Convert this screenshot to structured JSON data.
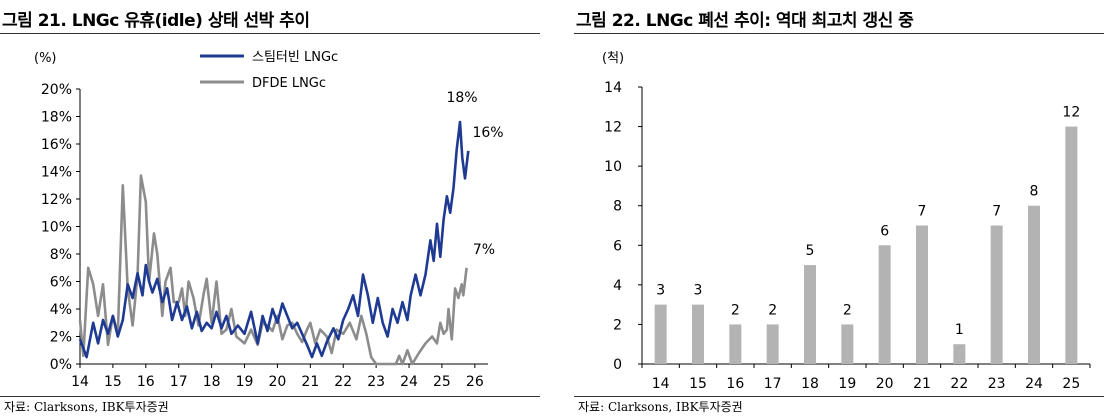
{
  "left": {
    "title": "그림 21. LNGc 유휴(idle) 상태 선박 추이",
    "source": "자료: Clarksons, IBK투자증권",
    "chart_data": {
      "type": "line",
      "unit_label": "(%)",
      "ylim": [
        0,
        20
      ],
      "y_ticks": [
        "0%",
        "2%",
        "4%",
        "6%",
        "8%",
        "10%",
        "12%",
        "14%",
        "16%",
        "18%",
        "20%"
      ],
      "x_ticks": [
        "14",
        "15",
        "16",
        "17",
        "18",
        "19",
        "20",
        "21",
        "22",
        "23",
        "24",
        "25",
        "26"
      ],
      "xlim": [
        2014,
        2026.4
      ],
      "grid": false,
      "legend": "top-center",
      "annotations": [
        "18%",
        "16%",
        "7%"
      ],
      "series": [
        {
          "name": "스팀터빈 LNGc",
          "color": "#1f3a93",
          "points": [
            [
              2014.0,
              1.8
            ],
            [
              2014.2,
              0.5
            ],
            [
              2014.4,
              3.0
            ],
            [
              2014.55,
              1.5
            ],
            [
              2014.7,
              3.2
            ],
            [
              2014.85,
              2.2
            ],
            [
              2015.0,
              3.5
            ],
            [
              2015.15,
              2.0
            ],
            [
              2015.3,
              3.2
            ],
            [
              2015.45,
              5.8
            ],
            [
              2015.6,
              4.8
            ],
            [
              2015.75,
              6.6
            ],
            [
              2015.9,
              5.0
            ],
            [
              2016.0,
              7.2
            ],
            [
              2016.1,
              6.0
            ],
            [
              2016.2,
              5.2
            ],
            [
              2016.35,
              6.2
            ],
            [
              2016.5,
              4.5
            ],
            [
              2016.65,
              5.5
            ],
            [
              2016.8,
              3.2
            ],
            [
              2016.95,
              4.5
            ],
            [
              2017.1,
              3.2
            ],
            [
              2017.25,
              4.2
            ],
            [
              2017.4,
              2.6
            ],
            [
              2017.55,
              3.8
            ],
            [
              2017.7,
              2.4
            ],
            [
              2017.85,
              3.0
            ],
            [
              2018.0,
              2.6
            ],
            [
              2018.15,
              3.8
            ],
            [
              2018.3,
              2.6
            ],
            [
              2018.45,
              3.5
            ],
            [
              2018.6,
              2.2
            ],
            [
              2018.8,
              2.8
            ],
            [
              2019.0,
              2.2
            ],
            [
              2019.2,
              3.8
            ],
            [
              2019.4,
              1.5
            ],
            [
              2019.55,
              3.5
            ],
            [
              2019.7,
              2.4
            ],
            [
              2019.85,
              4.0
            ],
            [
              2020.0,
              3.0
            ],
            [
              2020.15,
              4.4
            ],
            [
              2020.3,
              3.5
            ],
            [
              2020.45,
              2.6
            ],
            [
              2020.6,
              3.0
            ],
            [
              2020.75,
              2.2
            ],
            [
              2020.9,
              1.4
            ],
            [
              2021.05,
              0.5
            ],
            [
              2021.2,
              1.5
            ],
            [
              2021.35,
              0.6
            ],
            [
              2021.5,
              1.6
            ],
            [
              2021.7,
              2.6
            ],
            [
              2021.85,
              1.8
            ],
            [
              2022.0,
              3.2
            ],
            [
              2022.15,
              4.0
            ],
            [
              2022.3,
              5.0
            ],
            [
              2022.45,
              3.5
            ],
            [
              2022.6,
              6.5
            ],
            [
              2022.75,
              5.0
            ],
            [
              2022.9,
              3.0
            ],
            [
              2023.05,
              4.8
            ],
            [
              2023.2,
              3.0
            ],
            [
              2023.35,
              2.0
            ],
            [
              2023.5,
              4.0
            ],
            [
              2023.65,
              3.0
            ],
            [
              2023.8,
              4.5
            ],
            [
              2023.95,
              3.2
            ],
            [
              2024.05,
              5.0
            ],
            [
              2024.2,
              6.5
            ],
            [
              2024.35,
              5.0
            ],
            [
              2024.5,
              6.5
            ],
            [
              2024.65,
              9.0
            ],
            [
              2024.75,
              7.5
            ],
            [
              2024.85,
              10.2
            ],
            [
              2024.95,
              7.8
            ],
            [
              2025.05,
              10.5
            ],
            [
              2025.15,
              12.2
            ],
            [
              2025.25,
              11.0
            ],
            [
              2025.35,
              12.8
            ],
            [
              2025.45,
              15.6
            ],
            [
              2025.55,
              17.6
            ],
            [
              2025.62,
              15.0
            ],
            [
              2025.7,
              13.5
            ],
            [
              2025.8,
              15.5
            ]
          ]
        },
        {
          "name": "DFDE LNGc",
          "color": "#8c8c8c",
          "points": [
            [
              2014.0,
              3.2
            ],
            [
              2014.1,
              0.6
            ],
            [
              2014.25,
              7.0
            ],
            [
              2014.4,
              5.8
            ],
            [
              2014.55,
              3.5
            ],
            [
              2014.7,
              5.8
            ],
            [
              2014.85,
              1.4
            ],
            [
              2015.0,
              3.5
            ],
            [
              2015.15,
              2.2
            ],
            [
              2015.3,
              13.0
            ],
            [
              2015.45,
              5.5
            ],
            [
              2015.6,
              2.8
            ],
            [
              2015.75,
              6.5
            ],
            [
              2015.85,
              13.7
            ],
            [
              2016.0,
              11.8
            ],
            [
              2016.1,
              6.0
            ],
            [
              2016.25,
              9.5
            ],
            [
              2016.35,
              8.0
            ],
            [
              2016.5,
              3.5
            ],
            [
              2016.6,
              6.0
            ],
            [
              2016.75,
              7.0
            ],
            [
              2016.85,
              4.5
            ],
            [
              2017.0,
              4.5
            ],
            [
              2017.1,
              5.5
            ],
            [
              2017.2,
              3.5
            ],
            [
              2017.3,
              6.0
            ],
            [
              2017.45,
              4.8
            ],
            [
              2017.6,
              2.8
            ],
            [
              2017.75,
              5.0
            ],
            [
              2017.85,
              6.2
            ],
            [
              2018.0,
              3.0
            ],
            [
              2018.15,
              6.0
            ],
            [
              2018.3,
              2.2
            ],
            [
              2018.45,
              2.5
            ],
            [
              2018.6,
              4.0
            ],
            [
              2018.75,
              2.0
            ],
            [
              2019.0,
              1.5
            ],
            [
              2019.2,
              2.5
            ],
            [
              2019.4,
              1.4
            ],
            [
              2019.55,
              3.0
            ],
            [
              2019.7,
              2.8
            ],
            [
              2019.85,
              2.4
            ],
            [
              2020.0,
              3.5
            ],
            [
              2020.15,
              1.8
            ],
            [
              2020.3,
              2.8
            ],
            [
              2020.45,
              3.0
            ],
            [
              2020.6,
              2.2
            ],
            [
              2020.75,
              1.6
            ],
            [
              2020.9,
              2.5
            ],
            [
              2021.0,
              3.0
            ],
            [
              2021.15,
              1.5
            ],
            [
              2021.3,
              2.5
            ],
            [
              2021.5,
              2.0
            ],
            [
              2021.65,
              0.8
            ],
            [
              2021.8,
              2.5
            ],
            [
              2022.0,
              2.2
            ],
            [
              2022.2,
              3.0
            ],
            [
              2022.4,
              1.8
            ],
            [
              2022.55,
              3.5
            ],
            [
              2022.7,
              2.2
            ],
            [
              2022.85,
              0.5
            ],
            [
              2023.0,
              0.0
            ],
            [
              2023.2,
              0.0
            ],
            [
              2023.4,
              0.0
            ],
            [
              2023.6,
              0.0
            ],
            [
              2023.7,
              0.6
            ],
            [
              2023.8,
              0.0
            ],
            [
              2023.95,
              1.0
            ],
            [
              2024.1,
              0.0
            ],
            [
              2024.3,
              0.8
            ],
            [
              2024.5,
              1.5
            ],
            [
              2024.7,
              2.0
            ],
            [
              2024.85,
              1.5
            ],
            [
              2024.95,
              3.0
            ],
            [
              2025.05,
              2.2
            ],
            [
              2025.15,
              2.5
            ],
            [
              2025.2,
              4.0
            ],
            [
              2025.3,
              1.8
            ],
            [
              2025.4,
              5.5
            ],
            [
              2025.5,
              4.8
            ],
            [
              2025.6,
              5.8
            ],
            [
              2025.65,
              5.0
            ],
            [
              2025.75,
              7.0
            ]
          ]
        }
      ]
    }
  },
  "right": {
    "title": "그림 22. LNGc 폐선 추이: 역대 최고치 갱신 중",
    "source": "자료: Clarksons, IBK투자증권",
    "chart_data": {
      "type": "bar",
      "unit_label": "(척)",
      "ylim": [
        0,
        14
      ],
      "y_ticks": [
        "0",
        "2",
        "4",
        "6",
        "8",
        "10",
        "12",
        "14"
      ],
      "categories": [
        "14",
        "15",
        "16",
        "17",
        "18",
        "19",
        "20",
        "21",
        "22",
        "23",
        "24",
        "25"
      ],
      "values": [
        3,
        3,
        2,
        2,
        5,
        2,
        6,
        7,
        1,
        7,
        8,
        12
      ],
      "data_labels": [
        "3",
        "3",
        "2",
        "2",
        "5",
        "2",
        "6",
        "7",
        "1",
        "7",
        "8",
        "12"
      ],
      "bar_color": "#b3b3b3",
      "grid": false
    }
  }
}
